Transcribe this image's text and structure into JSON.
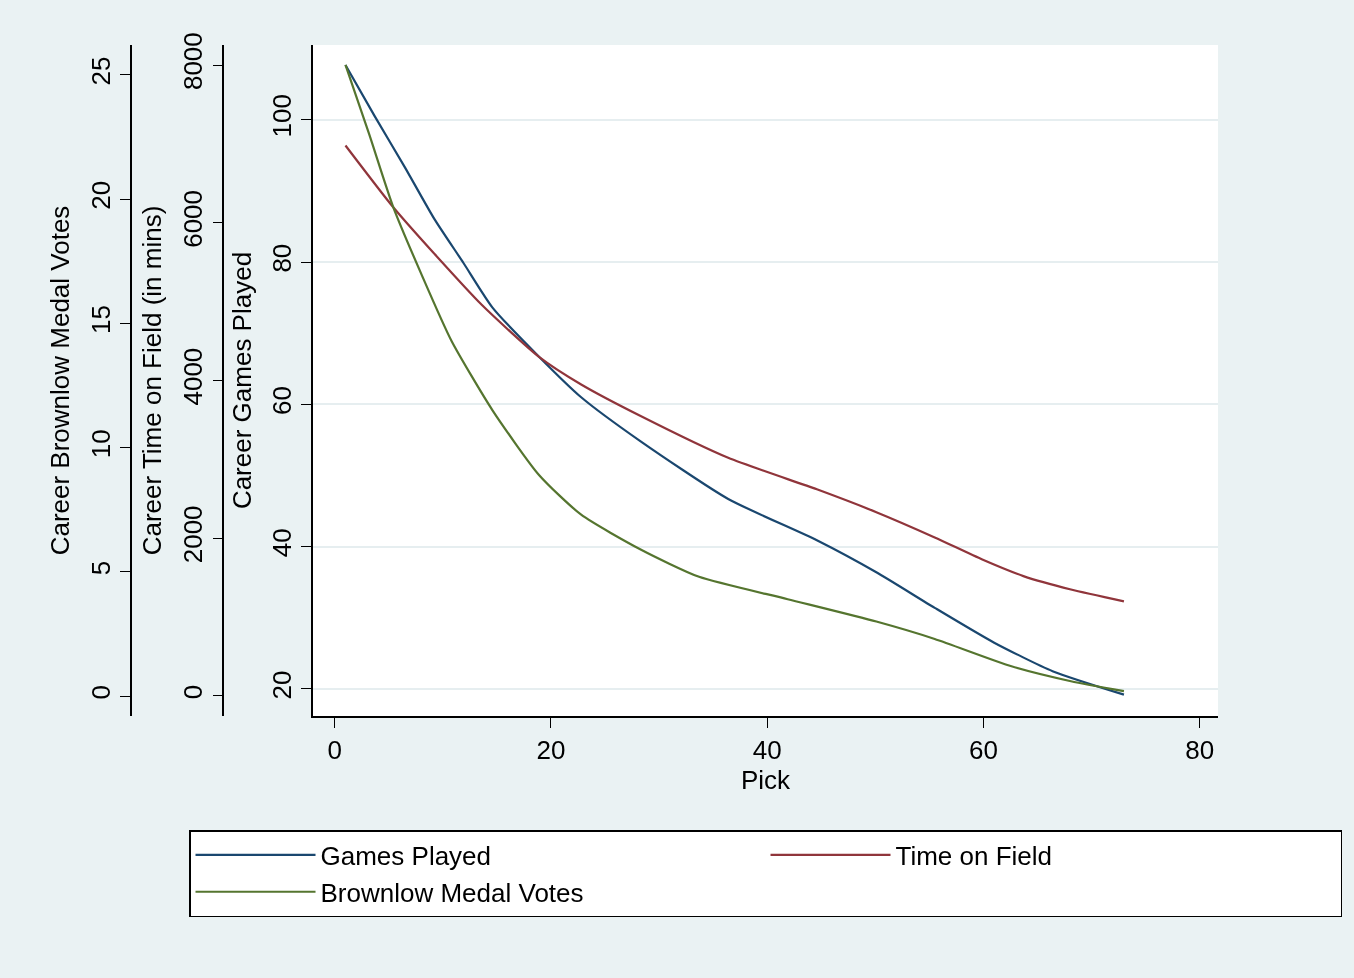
{
  "chart_data": {
    "type": "line",
    "xlabel": "Pick",
    "ylabel": "Career Games Played",
    "y2label": "Career Time on Field (in mins)",
    "y3label": "Career Brownlow Medal Votes",
    "xlim": [
      -2,
      81.7
    ],
    "xticks": [
      0,
      20,
      40,
      60,
      80
    ],
    "ylim": [
      16.2,
      110.5
    ],
    "yticks": [
      20,
      40,
      60,
      80,
      100
    ],
    "y2lim": [
      -254,
      8254
    ],
    "y2ticks": [
      0,
      2000,
      4000,
      6000,
      8000
    ],
    "y3lim": [
      -0.8,
      26.2
    ],
    "y3ticks": [
      0,
      5,
      10,
      15,
      20,
      25
    ],
    "grid": "y",
    "legend": "bottom",
    "marker": "none",
    "line_style": "solid",
    "series": [
      {
        "name": "Games Played",
        "color": "#1a476f",
        "x": [
          1,
          3.7,
          6.5,
          9.2,
          11.9,
          14.6,
          18.9,
          22.8,
          28.3,
          36.4,
          44.6,
          50.1,
          55.5,
          61,
          66.4,
          73
        ],
        "values": [
          107.7,
          100.5,
          93.3,
          86.1,
          79.9,
          73.6,
          66.7,
          61,
          54.8,
          46.7,
          40.9,
          36.4,
          31.4,
          26.5,
          22.5,
          19.2
        ]
      },
      {
        "name": "Time on Field",
        "color": "#90353b",
        "axis": "y2",
        "x": [
          1,
          5.4,
          9.2,
          13.6,
          18.9,
          22.8,
          28.3,
          36.4,
          44.6,
          50.1,
          55.5,
          59.9,
          63.7,
          68.1,
          73
        ],
        "values": [
          6980,
          6200,
          5610,
          4960,
          4300,
          3950,
          3550,
          3020,
          2620,
          2330,
          2010,
          1730,
          1520,
          1350,
          1200
        ]
      },
      {
        "name": "Brownlow Medal Votes",
        "color": "#55752f",
        "axis": "y3",
        "x": [
          1,
          3.2,
          5.4,
          8.1,
          10.8,
          14.6,
          18.9,
          22.8,
          28.3,
          33.7,
          41.9,
          50.1,
          55.5,
          62.6,
          68.1,
          73
        ],
        "values": [
          25.4,
          22.6,
          19.7,
          16.9,
          14.3,
          11.5,
          8.9,
          7.3,
          5.9,
          4.8,
          3.9,
          3,
          2.3,
          1.2,
          0.6,
          0.2
        ]
      }
    ]
  }
}
